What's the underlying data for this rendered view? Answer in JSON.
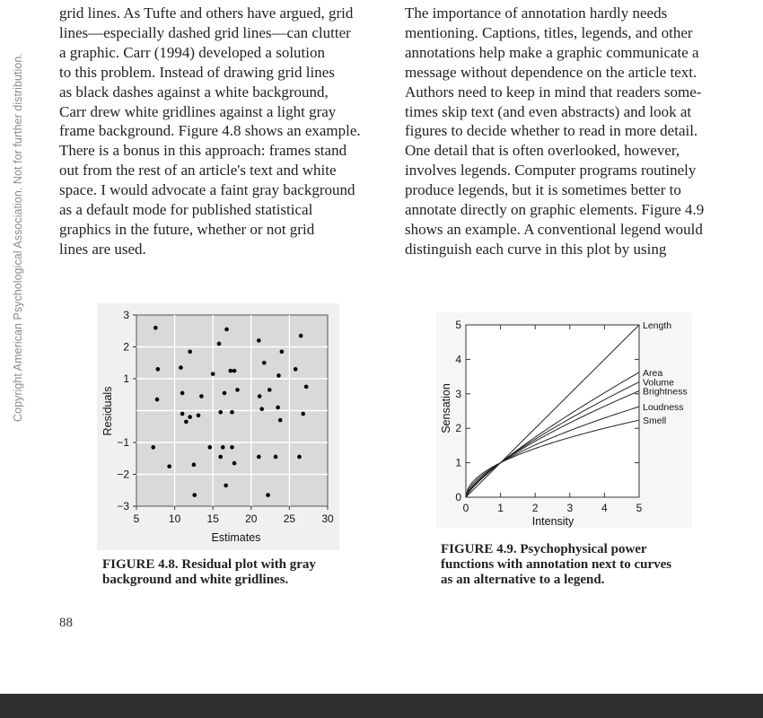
{
  "side_note": "Copyright American Psychological Association. Not for further distribution.",
  "left_column_lines": [
    "grid lines. As Tufte and others have argued, grid",
    "lines—especially dashed grid lines—can clutter",
    "a graphic. Carr (1994) developed a solution",
    "to this problem. Instead of drawing grid lines",
    "as black dashes against a white background,",
    "Carr drew white gridlines against a light gray",
    "frame background. Figure 4.8 shows an example.",
    "There is a bonus in this approach: frames stand",
    "out from the rest of an article's text and white",
    "space. I would advocate a faint gray background",
    "as a default mode for published statistical",
    "graphics in the future, whether or not grid",
    "lines are used."
  ],
  "right_column_lines": [
    "The importance of annotation hardly needs",
    "mentioning. Captions, titles, legends, and other",
    "annotations help make a graphic communicate a",
    "message without dependence on the article text.",
    "Authors need to keep in mind that readers some-",
    "times skip text (and even abstracts) and look at",
    "figures to decide whether to read in more detail.",
    "One detail that is often overlooked, however,",
    "involves legends. Computer programs routinely",
    "produce legends, but it is sometimes better to",
    "annotate directly on graphic elements. Figure 4.9",
    "shows an example. A conventional legend would",
    "distinguish each curve in this plot by using"
  ],
  "figure_48_caption_lines": [
    "FIGURE 4.8.   Residual plot with gray",
    "background and white gridlines."
  ],
  "figure_49_caption_lines": [
    "FIGURE 4.9.   Psychophysical power",
    "functions with annotation next to curves",
    "as an alternative to a legend."
  ],
  "page_number": "88",
  "colors": {
    "plot_background": "#d9d9d9",
    "gridline": "#ffffff",
    "footer_bar": "#2f2f2f"
  },
  "chart_data": [
    {
      "type": "scatter",
      "xlabel": "Estimates",
      "ylabel": "Residuals",
      "xlim": [
        5,
        30
      ],
      "ylim": [
        -3,
        3
      ],
      "xticks": [
        "5",
        "10",
        "15",
        "20",
        "25",
        "30"
      ],
      "yticks": [
        "−3",
        "−2",
        "−1",
        "1",
        "2",
        "3"
      ],
      "grid": "white gridlines on gray background",
      "points": [
        [
          7.5,
          2.6
        ],
        [
          7.8,
          1.3
        ],
        [
          7.7,
          0.35
        ],
        [
          7.2,
          -1.15
        ],
        [
          9.3,
          -1.75
        ],
        [
          10.8,
          1.35
        ],
        [
          11.0,
          0.55
        ],
        [
          11.0,
          -0.1
        ],
        [
          11.5,
          -0.35
        ],
        [
          12.0,
          1.85
        ],
        [
          12.0,
          -0.2
        ],
        [
          12.5,
          -1.7
        ],
        [
          12.6,
          -2.65
        ],
        [
          13.1,
          -0.15
        ],
        [
          13.5,
          0.45
        ],
        [
          14.6,
          -1.15
        ],
        [
          15.0,
          1.15
        ],
        [
          15.8,
          2.1
        ],
        [
          16.0,
          -0.05
        ],
        [
          16.0,
          -1.45
        ],
        [
          16.3,
          -1.15
        ],
        [
          16.5,
          0.55
        ],
        [
          16.7,
          -2.35
        ],
        [
          16.8,
          2.55
        ],
        [
          17.3,
          1.25
        ],
        [
          17.5,
          -0.05
        ],
        [
          17.5,
          -1.15
        ],
        [
          17.8,
          1.25
        ],
        [
          17.8,
          -1.65
        ],
        [
          18.2,
          0.65
        ],
        [
          21.0,
          2.2
        ],
        [
          21.1,
          0.45
        ],
        [
          21.0,
          -1.45
        ],
        [
          21.4,
          0.05
        ],
        [
          21.7,
          1.5
        ],
        [
          22.2,
          -2.65
        ],
        [
          22.4,
          0.65
        ],
        [
          23.2,
          -1.45
        ],
        [
          23.6,
          1.1
        ],
        [
          23.5,
          0.1
        ],
        [
          24.0,
          1.85
        ],
        [
          23.8,
          -0.3
        ],
        [
          25.8,
          1.3
        ],
        [
          26.3,
          -1.45
        ],
        [
          26.5,
          2.35
        ],
        [
          26.8,
          -0.1
        ],
        [
          27.2,
          0.75
        ]
      ]
    },
    {
      "type": "line",
      "xlabel": "Intensity",
      "ylabel": "Sensation",
      "xlim": [
        0,
        5
      ],
      "ylim": [
        0,
        5
      ],
      "xticks": [
        "0",
        "1",
        "2",
        "3",
        "4",
        "5"
      ],
      "yticks": [
        "0",
        "1",
        "2",
        "3",
        "4",
        "5"
      ],
      "grid": "none",
      "series": [
        {
          "name": "Length",
          "exponent": 1.0
        },
        {
          "name": "Area",
          "exponent": 0.8
        },
        {
          "name": "Volume",
          "exponent": 0.75
        },
        {
          "name": "Brightness",
          "exponent": 0.7
        },
        {
          "name": "Loudness",
          "exponent": 0.6
        },
        {
          "name": "Smell",
          "exponent": 0.5
        }
      ]
    }
  ]
}
